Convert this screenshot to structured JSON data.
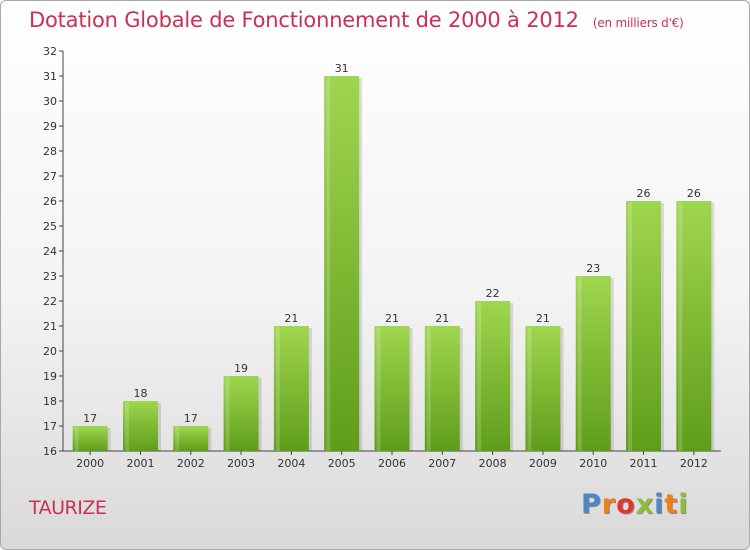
{
  "header": {
    "title": "Dotation Globale de Fonctionnement de 2000 à 2012",
    "subtitle": "(en milliers d'€)"
  },
  "footer": {
    "town": "TAURIZE",
    "logo": [
      "P",
      "r",
      "o",
      "x",
      "i",
      "t",
      "i"
    ],
    "logo_colors": [
      "#4f86c6",
      "#f07e1a",
      "#e2352b",
      "#8ebe38",
      "#4f86c6",
      "#f07e1a",
      "#8ebe38"
    ]
  },
  "chart_data": {
    "type": "bar",
    "categories": [
      "2000",
      "2001",
      "2002",
      "2003",
      "2004",
      "2005",
      "2006",
      "2007",
      "2008",
      "2009",
      "2010",
      "2011",
      "2012"
    ],
    "values": [
      17,
      18,
      17,
      19,
      21,
      31,
      21,
      21,
      22,
      21,
      23,
      26,
      26
    ],
    "ylim": [
      16,
      32
    ],
    "yticks": [
      16,
      17,
      18,
      19,
      20,
      21,
      22,
      23,
      24,
      25,
      26,
      27,
      28,
      29,
      30,
      31,
      32
    ],
    "grid": false,
    "bar_color": "#7cc031"
  }
}
